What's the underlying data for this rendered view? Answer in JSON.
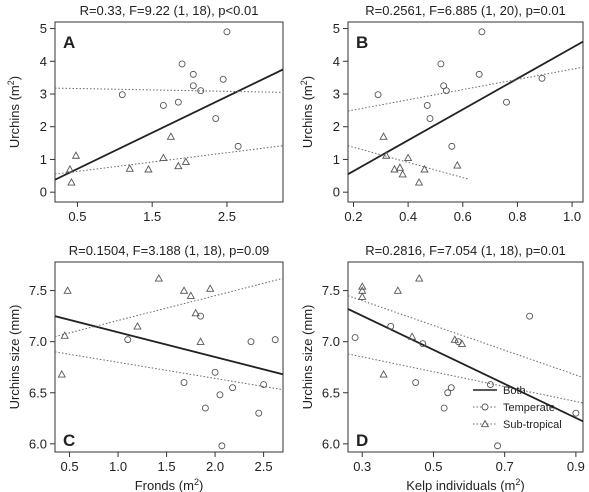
{
  "chart_data": [
    {
      "panel": "A",
      "type": "scatter",
      "title": "R=0.33, F=9.22 (1, 18), p<0.01",
      "xlabel": "",
      "ylabel": "Urchins (m²)",
      "xlim": [
        0.2,
        3.25
      ],
      "ylim": [
        -0.3,
        5.2
      ],
      "xticks": [
        {
          "v": 0.5,
          "t": "0.5"
        },
        {
          "v": 1.5,
          "t": "1.5"
        },
        {
          "v": 2.5,
          "t": "2.5"
        }
      ],
      "yticks": [
        {
          "v": 0,
          "t": "0"
        },
        {
          "v": 1,
          "t": "1"
        },
        {
          "v": 2,
          "t": "2"
        },
        {
          "v": 3,
          "t": "3"
        },
        {
          "v": 4,
          "t": "4"
        },
        {
          "v": 5,
          "t": "5"
        }
      ],
      "series": [
        {
          "name": "Temperate",
          "marker": "circle",
          "points": [
            [
              1.1,
              2.98
            ],
            [
              1.65,
              2.65
            ],
            [
              1.85,
              2.75
            ],
            [
              1.9,
              3.92
            ],
            [
              2.05,
              3.25
            ],
            [
              2.05,
              3.6
            ],
            [
              2.15,
              3.1
            ],
            [
              2.35,
              2.25
            ],
            [
              2.45,
              3.45
            ],
            [
              2.5,
              4.9
            ],
            [
              2.65,
              1.4
            ]
          ]
        },
        {
          "name": "Sub-tropical",
          "marker": "triangle",
          "points": [
            [
              0.4,
              0.7
            ],
            [
              0.42,
              0.3
            ],
            [
              0.48,
              1.12
            ],
            [
              1.2,
              0.72
            ],
            [
              1.45,
              0.7
            ],
            [
              1.65,
              1.05
            ],
            [
              1.75,
              1.7
            ],
            [
              1.85,
              0.8
            ],
            [
              1.95,
              0.93
            ]
          ]
        }
      ],
      "fits": [
        {
          "name": "Both",
          "style": "solid",
          "p1": [
            0.2,
            0.38
          ],
          "p2": [
            3.25,
            3.75
          ]
        },
        {
          "name": "Temperate",
          "style": "dotted",
          "p1": [
            0.2,
            3.18
          ],
          "p2": [
            3.25,
            3.05
          ]
        },
        {
          "name": "Sub-tropical",
          "style": "dotted",
          "p1": [
            0.2,
            0.55
          ],
          "p2": [
            3.25,
            1.42
          ]
        }
      ]
    },
    {
      "panel": "B",
      "type": "scatter",
      "title": "R=0.2561, F=6.885 (1, 20), p=0.01",
      "xlabel": "",
      "ylabel": "Urchins (m²)",
      "xlim": [
        0.18,
        1.04
      ],
      "ylim": [
        -0.3,
        5.2
      ],
      "xticks": [
        {
          "v": 0.2,
          "t": "0.2"
        },
        {
          "v": 0.4,
          "t": "0.4"
        },
        {
          "v": 0.6,
          "t": "0.6"
        },
        {
          "v": 0.8,
          "t": "0.8"
        },
        {
          "v": 1.0,
          "t": "1.0"
        }
      ],
      "yticks": [
        {
          "v": 0,
          "t": "0"
        },
        {
          "v": 1,
          "t": "1"
        },
        {
          "v": 2,
          "t": "2"
        },
        {
          "v": 3,
          "t": "3"
        },
        {
          "v": 4,
          "t": "4"
        },
        {
          "v": 5,
          "t": "5"
        }
      ],
      "series": [
        {
          "name": "Temperate",
          "marker": "circle",
          "points": [
            [
              0.29,
              2.98
            ],
            [
              0.47,
              2.65
            ],
            [
              0.48,
              2.25
            ],
            [
              0.52,
              3.92
            ],
            [
              0.53,
              3.25
            ],
            [
              0.54,
              3.1
            ],
            [
              0.56,
              1.4
            ],
            [
              0.66,
              3.6
            ],
            [
              0.67,
              4.9
            ],
            [
              0.76,
              2.75
            ],
            [
              0.89,
              3.48
            ]
          ]
        },
        {
          "name": "Sub-tropical",
          "marker": "triangle",
          "points": [
            [
              0.31,
              1.7
            ],
            [
              0.32,
              1.12
            ],
            [
              0.35,
              0.7
            ],
            [
              0.37,
              0.75
            ],
            [
              0.38,
              0.55
            ],
            [
              0.4,
              1.05
            ],
            [
              0.44,
              0.3
            ],
            [
              0.46,
              0.7
            ],
            [
              0.58,
              0.82
            ]
          ]
        }
      ],
      "fits": [
        {
          "name": "Both",
          "style": "solid",
          "p1": [
            0.18,
            0.55
          ],
          "p2": [
            1.04,
            4.6
          ]
        },
        {
          "name": "Temperate",
          "style": "dotted",
          "p1": [
            0.18,
            2.48
          ],
          "p2": [
            1.04,
            3.82
          ]
        },
        {
          "name": "Sub-tropical",
          "style": "dotted",
          "p1": [
            0.18,
            1.42
          ],
          "p2": [
            0.62,
            0.4
          ]
        }
      ]
    },
    {
      "panel": "C",
      "type": "scatter",
      "title": "R=0.1504, F=3.188 (1, 18), p=0.09",
      "xlabel": "Fronds (m²)",
      "ylabel": "Urchins size (mm)",
      "xlim": [
        0.35,
        2.7
      ],
      "ylim": [
        5.92,
        7.78
      ],
      "xticks": [
        {
          "v": 0.5,
          "t": "0.5"
        },
        {
          "v": 1.0,
          "t": "1.0"
        },
        {
          "v": 1.5,
          "t": "1.5"
        },
        {
          "v": 2.0,
          "t": "2.0"
        },
        {
          "v": 2.5,
          "t": "2.5"
        }
      ],
      "yticks": [
        {
          "v": 6.0,
          "t": "6.0"
        },
        {
          "v": 6.5,
          "t": "6.5"
        },
        {
          "v": 7.0,
          "t": "7.0"
        },
        {
          "v": 7.5,
          "t": "7.5"
        }
      ],
      "series": [
        {
          "name": "Temperate",
          "marker": "circle",
          "points": [
            [
              1.1,
              7.02
            ],
            [
              1.68,
              6.6
            ],
            [
              1.85,
              7.25
            ],
            [
              1.9,
              6.35
            ],
            [
              2.0,
              6.7
            ],
            [
              2.05,
              6.48
            ],
            [
              2.07,
              5.98
            ],
            [
              2.18,
              6.55
            ],
            [
              2.37,
              7.0
            ],
            [
              2.45,
              6.3
            ],
            [
              2.5,
              6.58
            ],
            [
              2.62,
              7.02
            ]
          ]
        },
        {
          "name": "Sub-tropical",
          "marker": "triangle",
          "points": [
            [
              0.42,
              6.68
            ],
            [
              0.45,
              7.06
            ],
            [
              0.48,
              7.5
            ],
            [
              1.2,
              7.15
            ],
            [
              1.42,
              7.62
            ],
            [
              1.68,
              7.5
            ],
            [
              1.75,
              7.45
            ],
            [
              1.8,
              7.28
            ],
            [
              1.85,
              7.0
            ],
            [
              1.95,
              7.52
            ]
          ]
        }
      ],
      "fits": [
        {
          "name": "Both",
          "style": "solid",
          "p1": [
            0.35,
            7.25
          ],
          "p2": [
            2.7,
            6.68
          ]
        },
        {
          "name": "Temperate",
          "style": "dotted",
          "p1": [
            0.35,
            6.9
          ],
          "p2": [
            2.7,
            6.53
          ]
        },
        {
          "name": "Sub-tropical",
          "style": "dotted",
          "p1": [
            0.35,
            7.05
          ],
          "p2": [
            2.7,
            7.62
          ]
        }
      ]
    },
    {
      "panel": "D",
      "type": "scatter",
      "title": "R=0.2816, F=7.054 (1, 18), p=0.01",
      "xlabel": "Kelp individuals (m²)",
      "ylabel": "Urchins size (mm)",
      "xlim": [
        0.26,
        0.92
      ],
      "ylim": [
        5.92,
        7.78
      ],
      "xticks": [
        {
          "v": 0.3,
          "t": "0.3"
        },
        {
          "v": 0.5,
          "t": "0.5"
        },
        {
          "v": 0.7,
          "t": "0.7"
        },
        {
          "v": 0.9,
          "t": "0.9"
        }
      ],
      "yticks": [
        {
          "v": 6.0,
          "t": "6.0"
        },
        {
          "v": 6.5,
          "t": "6.5"
        },
        {
          "v": 7.0,
          "t": "7.0"
        },
        {
          "v": 7.5,
          "t": "7.5"
        }
      ],
      "series": [
        {
          "name": "Temperate",
          "marker": "circle",
          "points": [
            [
              0.28,
              7.04
            ],
            [
              0.38,
              7.15
            ],
            [
              0.45,
              6.6
            ],
            [
              0.47,
              6.98
            ],
            [
              0.53,
              6.35
            ],
            [
              0.54,
              6.5
            ],
            [
              0.55,
              6.55
            ],
            [
              0.57,
              7.0
            ],
            [
              0.66,
              6.58
            ],
            [
              0.68,
              5.98
            ],
            [
              0.77,
              7.25
            ],
            [
              0.9,
              6.3
            ]
          ]
        },
        {
          "name": "Sub-tropical",
          "marker": "triangle",
          "points": [
            [
              0.3,
              7.44
            ],
            [
              0.3,
              7.5
            ],
            [
              0.3,
              7.54
            ],
            [
              0.36,
              6.68
            ],
            [
              0.4,
              7.5
            ],
            [
              0.44,
              7.05
            ],
            [
              0.46,
              7.62
            ],
            [
              0.56,
              7.02
            ],
            [
              0.58,
              6.98
            ]
          ]
        }
      ],
      "fits": [
        {
          "name": "Both",
          "style": "solid",
          "p1": [
            0.26,
            7.32
          ],
          "p2": [
            0.92,
            6.22
          ]
        },
        {
          "name": "Temperate",
          "style": "dotted",
          "p1": [
            0.26,
            6.88
          ],
          "p2": [
            0.92,
            6.4
          ]
        },
        {
          "name": "Sub-tropical",
          "style": "dotted",
          "p1": [
            0.26,
            7.45
          ],
          "p2": [
            0.92,
            6.65
          ]
        }
      ],
      "legend": {
        "placement": "top-right",
        "entries": [
          {
            "label": "Both",
            "style": "solid",
            "marker": "none"
          },
          {
            "label": "Temperate",
            "style": "dotted",
            "marker": "circle"
          },
          {
            "label": "Sub-tropical",
            "style": "dotted",
            "marker": "triangle"
          }
        ]
      }
    }
  ]
}
